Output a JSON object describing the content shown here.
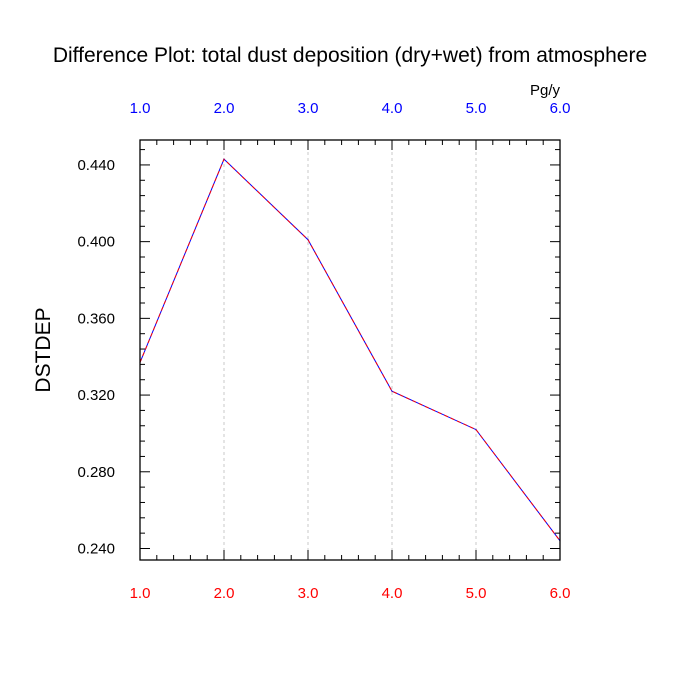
{
  "chart_data": {
    "type": "line",
    "title": "Difference Plot: total dust deposition (dry+wet) from atmosphere",
    "units": "Pg/y",
    "ylabel": "DSTDEP",
    "xlabel": "",
    "xlim": [
      1.0,
      6.0
    ],
    "ylim": [
      0.234,
      0.453
    ],
    "x_ticks": [
      "1.0",
      "2.0",
      "3.0",
      "4.0",
      "5.0",
      "6.0"
    ],
    "y_ticks": [
      "0.240",
      "0.280",
      "0.320",
      "0.360",
      "0.400",
      "0.440"
    ],
    "top_tick_color": "#0000ff",
    "bottom_tick_color": "#ff0000",
    "line_color_1": "#ff0000",
    "line_color_2": "#0000ff",
    "vertical_grid": true,
    "series": [
      {
        "x": [
          1.0,
          2.0,
          3.0,
          4.0,
          5.0,
          6.0
        ],
        "values": [
          0.337,
          0.443,
          0.401,
          0.322,
          0.302,
          0.244
        ]
      }
    ]
  }
}
